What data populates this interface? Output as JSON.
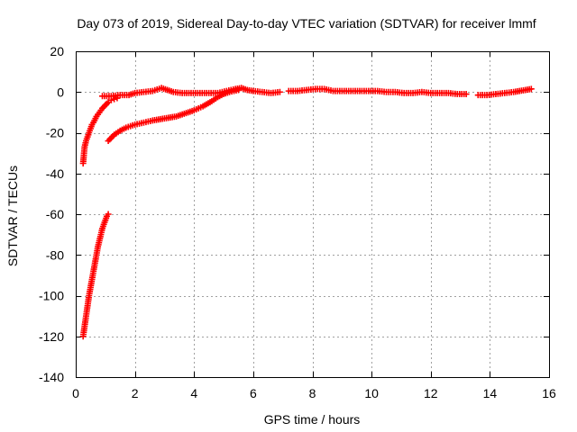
{
  "chart_data": {
    "type": "scatter",
    "title": "Day 073 of 2019, Sidereal Day-to-day VTEC variation (SDTVAR) for receiver lmmf",
    "xlabel": "GPS time / hours",
    "ylabel": "SDTVAR / TECUs",
    "xlim": [
      0,
      16
    ],
    "ylim": [
      -140,
      20
    ],
    "xticks": [
      0,
      2,
      4,
      6,
      8,
      10,
      12,
      14,
      16
    ],
    "yticks": [
      20,
      0,
      -20,
      -40,
      -60,
      -80,
      -100,
      -120,
      -140
    ],
    "grid": true,
    "marker": "+",
    "color": "#ff0000",
    "segments": [
      {
        "x": [
          0.25,
          0.3,
          0.35,
          0.4,
          0.45,
          0.5,
          0.55,
          0.6,
          0.65,
          0.7,
          0.75,
          0.8,
          0.85,
          0.9,
          0.95,
          1.0,
          1.05,
          1.1
        ],
        "y": [
          -120,
          -115,
          -110,
          -105,
          -100,
          -96,
          -92,
          -88,
          -84,
          -80,
          -76,
          -73,
          -70,
          -67,
          -65,
          -63,
          -61,
          -60
        ]
      },
      {
        "x": [
          0.25,
          0.28,
          0.3,
          0.35,
          0.4,
          0.45,
          0.5,
          0.55,
          0.6,
          0.7,
          0.8,
          0.9,
          1.0,
          1.1,
          1.2,
          1.3,
          1.4
        ],
        "y": [
          -35,
          -30,
          -27,
          -24,
          -22,
          -20,
          -18,
          -16,
          -15,
          -12,
          -10,
          -8,
          -6.5,
          -5,
          -4,
          -3.5,
          -3
        ]
      },
      {
        "x": [
          1.1,
          1.3,
          1.5,
          1.7,
          2.0,
          2.3,
          2.6,
          3.0,
          3.4,
          3.8,
          4.0,
          4.3,
          4.6,
          4.8,
          5.0,
          5.2,
          5.5
        ],
        "y": [
          -24,
          -21,
          -19,
          -17.5,
          -16,
          -15,
          -14,
          -13,
          -12,
          -10,
          -9,
          -7,
          -4.5,
          -2.5,
          -1,
          0,
          1
        ]
      },
      {
        "x": [
          0.9,
          1.2,
          1.5,
          1.8,
          2.0,
          2.3,
          2.6,
          2.9,
          3.1,
          3.3,
          3.6,
          3.9,
          4.2,
          4.5,
          4.8,
          5.1,
          5.4,
          5.6,
          5.8,
          6.0,
          6.3,
          6.6,
          6.9
        ],
        "y": [
          -2,
          -2,
          -1.5,
          -1.5,
          -0.5,
          0,
          0.5,
          2,
          1,
          0,
          -0.5,
          -0.5,
          -0.5,
          -0.5,
          -0.5,
          0.5,
          1.5,
          2,
          1,
          0.5,
          0,
          -0.5,
          0
        ]
      },
      {
        "x": [
          7.2,
          7.5,
          7.8,
          8.1,
          8.4,
          8.7,
          9.0,
          9.3,
          9.6,
          9.9,
          10.2,
          10.5,
          10.8,
          11.1,
          11.4,
          11.7,
          12.0,
          12.3,
          12.6,
          12.9,
          13.2
        ],
        "y": [
          0.5,
          0.5,
          1,
          1.5,
          1.5,
          0.5,
          0.5,
          0.5,
          0.5,
          0.5,
          0.5,
          0,
          0,
          -0.5,
          -0.5,
          0,
          -0.5,
          -0.5,
          -0.5,
          -1,
          -1
        ]
      },
      {
        "x": [
          13.6,
          13.9,
          14.2,
          14.5,
          14.8,
          15.0,
          15.2,
          15.4
        ],
        "y": [
          -1.5,
          -1.5,
          -1,
          -0.5,
          0,
          0.5,
          1,
          1.5
        ]
      }
    ]
  }
}
